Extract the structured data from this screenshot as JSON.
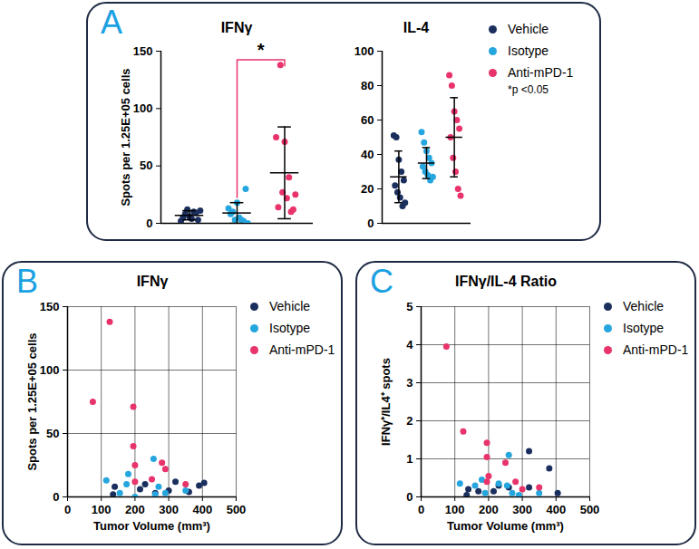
{
  "chart_data": [
    {
      "type": "strip",
      "panel": "A",
      "title": "IFNγ",
      "y_label": "Spots per 1.25E+05 cells",
      "ylim": [
        0,
        150
      ],
      "yticks": [
        0,
        50,
        100,
        150
      ],
      "tick_labels": "y",
      "annotations": [
        {
          "text": "*",
          "from": "Isotype",
          "to": "Anti-mPD-1"
        }
      ],
      "series": [
        {
          "name": "Vehicle",
          "color": "#1b2f5e",
          "values": [
            2,
            8,
            6,
            10,
            3,
            5,
            12,
            4,
            9,
            11
          ],
          "mean": 7,
          "sd": 4
        },
        {
          "name": "Isotype",
          "color": "#26a6de",
          "values": [
            13,
            10,
            18,
            3,
            30,
            8,
            3,
            5,
            2,
            0
          ],
          "mean": 9,
          "sd": 9
        },
        {
          "name": "Anti-mPD-1",
          "color": "#e8336b",
          "values": [
            75,
            138,
            71,
            40,
            12,
            14,
            27,
            22,
            10,
            25
          ],
          "mean": 44,
          "sd": 40
        }
      ]
    },
    {
      "type": "strip",
      "title": "IL-4",
      "ylim": [
        0,
        100
      ],
      "yticks": [
        0,
        20,
        40,
        60,
        80,
        100
      ],
      "tick_labels": "y",
      "legend": "right",
      "note": "*p <0.05",
      "series": [
        {
          "name": "Vehicle",
          "color": "#1b2f5e",
          "values": [
            51,
            50,
            37,
            30,
            25,
            22,
            18,
            15,
            10,
            12
          ],
          "mean": 27,
          "sd": 15
        },
        {
          "name": "Isotype",
          "color": "#26a6de",
          "values": [
            53,
            47,
            42,
            38,
            35,
            33,
            30,
            28,
            25,
            27
          ],
          "mean": 35,
          "sd": 9
        },
        {
          "name": "Anti-mPD-1",
          "color": "#e8336b",
          "values": [
            86,
            80,
            65,
            60,
            55,
            50,
            38,
            30,
            20,
            16
          ],
          "mean": 50,
          "sd": 23
        }
      ]
    },
    {
      "type": "scatter",
      "panel": "B",
      "title": "IFNγ",
      "x_label": "Tumor Volume (mm³)",
      "y_label": "Spots per 1.25E+05 cells",
      "xlim": [
        0,
        500
      ],
      "xticks": [
        0,
        100,
        200,
        300,
        400,
        500
      ],
      "ylim": [
        0,
        150
      ],
      "yticks": [
        0,
        50,
        100,
        150
      ],
      "grid": true,
      "legend": "right",
      "series": [
        {
          "name": "Vehicle",
          "color": "#1b2f5e",
          "x": [
            135,
            140,
            215,
            230,
            260,
            300,
            320,
            360,
            390,
            405
          ],
          "y": [
            2,
            8,
            6,
            10,
            3,
            5,
            12,
            4,
            9,
            11
          ]
        },
        {
          "name": "Isotype",
          "color": "#26a6de",
          "x": [
            115,
            175,
            180,
            155,
            255,
            270,
            290,
            350,
            260,
            200
          ],
          "y": [
            13,
            10,
            18,
            3,
            30,
            8,
            3,
            5,
            2,
            0
          ]
        },
        {
          "name": "Anti-mPD-1",
          "color": "#e8336b",
          "x": [
            75,
            125,
            195,
            195,
            200,
            250,
            280,
            290,
            350,
            200
          ],
          "y": [
            75,
            138,
            71,
            40,
            12,
            14,
            27,
            22,
            10,
            25
          ]
        }
      ]
    },
    {
      "type": "scatter",
      "panel": "C",
      "title": "IFNγ/IL-4 Ratio",
      "x_label": "Tumor Volume (mm³)",
      "y_label": "IFNγ⁺/IL4⁺ spots",
      "xlim": [
        0,
        500
      ],
      "xticks": [
        0,
        100,
        200,
        300,
        400,
        500
      ],
      "ylim": [
        0,
        5
      ],
      "yticks": [
        0,
        1,
        2,
        3,
        4,
        5
      ],
      "grid": true,
      "legend": "right",
      "series": [
        {
          "name": "Vehicle",
          "color": "#1b2f5e",
          "x": [
            135,
            140,
            170,
            215,
            230,
            260,
            320,
            320,
            380,
            405
          ],
          "y": [
            0.05,
            0.2,
            0.15,
            0.15,
            0.3,
            0.25,
            1.2,
            0.25,
            0.75,
            0.1
          ]
        },
        {
          "name": "Isotype",
          "color": "#26a6de",
          "x": [
            115,
            160,
            180,
            260,
            270,
            290,
            350,
            190,
            230,
            255
          ],
          "y": [
            0.35,
            0.3,
            0.45,
            1.1,
            0.1,
            0.05,
            0.1,
            0.1,
            0.35,
            0.3
          ]
        },
        {
          "name": "Anti-mPD-1",
          "color": "#e8336b",
          "x": [
            75,
            125,
            195,
            195,
            200,
            195,
            250,
            280,
            300,
            350
          ],
          "y": [
            3.95,
            1.72,
            1.42,
            1.05,
            0.55,
            0.4,
            0.9,
            0.4,
            0.2,
            0.25
          ]
        }
      ]
    }
  ]
}
